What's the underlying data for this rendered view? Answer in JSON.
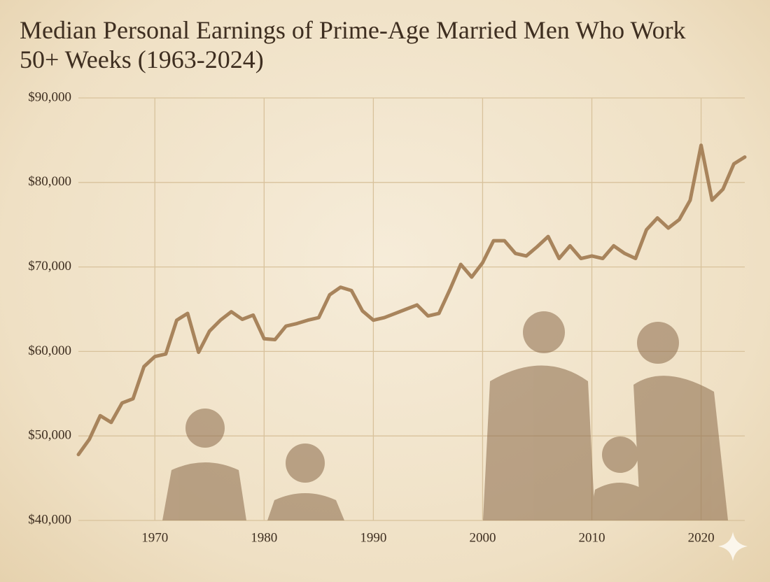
{
  "chart_data": {
    "type": "line",
    "title": "Median Personal Earnings of Prime-Age Married Men Who Work 50+ Weeks (1963-2024)",
    "x": [
      1963,
      1964,
      1965,
      1966,
      1967,
      1968,
      1969,
      1970,
      1971,
      1972,
      1973,
      1974,
      1975,
      1976,
      1977,
      1978,
      1979,
      1980,
      1981,
      1982,
      1983,
      1984,
      1985,
      1986,
      1987,
      1988,
      1989,
      1990,
      1991,
      1992,
      1993,
      1994,
      1995,
      1996,
      1997,
      1998,
      1999,
      2000,
      2001,
      2002,
      2003,
      2004,
      2005,
      2006,
      2007,
      2008,
      2009,
      2010,
      2011,
      2012,
      2013,
      2014,
      2015,
      2016,
      2017,
      2018,
      2019,
      2020,
      2021,
      2022,
      2023,
      2024
    ],
    "series": [
      {
        "color": "#a8845c",
        "values": [
          47800,
          49600,
          52400,
          51600,
          53900,
          54400,
          58200,
          59400,
          59700,
          63700,
          64500,
          59900,
          62400,
          63700,
          64700,
          63800,
          64300,
          61500,
          61400,
          63000,
          63300,
          63700,
          64000,
          66700,
          67600,
          67200,
          64800,
          63700,
          64000,
          64500,
          65000,
          65500,
          64200,
          64500,
          67300,
          70300,
          68800,
          70500,
          73100,
          73100,
          71600,
          71300,
          72400,
          73600,
          71000,
          72500,
          71000,
          71300,
          71000,
          72500,
          71600,
          71000,
          74400,
          75800,
          74600,
          75600,
          77900,
          84400,
          77900,
          79200,
          82200,
          83000
        ]
      }
    ],
    "xlim": [
      1963,
      2024
    ],
    "xticks": [
      1970,
      1980,
      1990,
      2000,
      2010,
      2020
    ],
    "ylim": [
      40000,
      90000
    ],
    "yticks": [
      {
        "value": 40000,
        "label": "$40,000"
      },
      {
        "value": 50000,
        "label": "$50,000"
      },
      {
        "value": 60000,
        "label": "$60,000"
      },
      {
        "value": 70000,
        "label": "$70,000"
      },
      {
        "value": 80000,
        "label": "$80,000"
      },
      {
        "value": 90000,
        "label": "$90,000"
      }
    ],
    "grid": true
  }
}
